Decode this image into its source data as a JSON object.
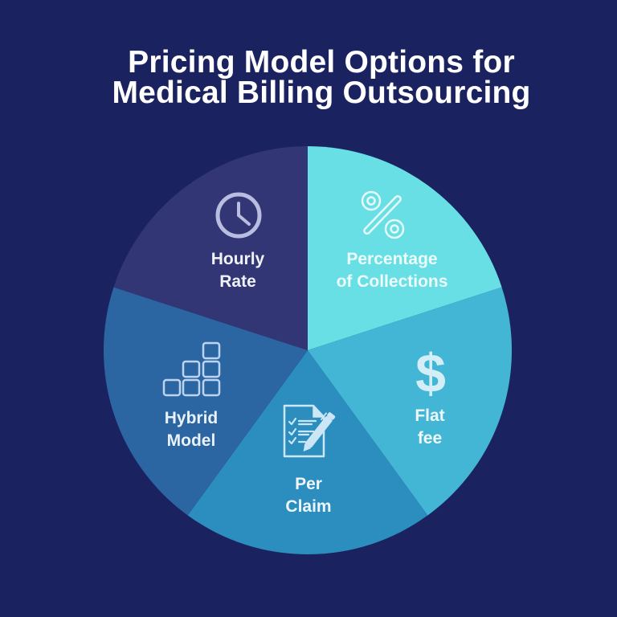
{
  "title": {
    "line1": "Pricing Model Options for",
    "line2": "Medical Billing Outsourcing"
  },
  "colors": {
    "background": "#1b2260",
    "title_text": "#ffffff"
  },
  "slices": [
    {
      "label_lines": [
        "Percentage",
        "of Collections"
      ],
      "icon": "percent-icon",
      "color": "#68dfe5"
    },
    {
      "label_lines": [
        "Flat",
        "fee"
      ],
      "icon": "dollar-icon",
      "color": "#44b6d5"
    },
    {
      "label_lines": [
        "Per",
        "Claim"
      ],
      "icon": "document-pen-icon",
      "color": "#2c8ebf"
    },
    {
      "label_lines": [
        "Hybrid",
        "Model"
      ],
      "icon": "stacked-blocks-icon",
      "color": "#2c66a2"
    },
    {
      "label_lines": [
        "Hourly",
        "Rate"
      ],
      "icon": "clock-icon",
      "color": "#323674"
    }
  ],
  "chart_data": {
    "type": "pie",
    "title": "Pricing Model Options for Medical Billing Outsourcing",
    "categories": [
      "Percentage of Collections",
      "Flat fee",
      "Per Claim",
      "Hybrid Model",
      "Hourly Rate"
    ],
    "values": [
      20,
      20,
      20,
      20,
      20
    ],
    "colors": [
      "#68dfe5",
      "#44b6d5",
      "#2c8ebf",
      "#2c66a2",
      "#323674"
    ],
    "start_angle_deg": 0,
    "direction": "clockwise",
    "legend": "none",
    "labels": "inside slices, with icons",
    "xlabel": "",
    "ylabel": ""
  },
  "icons": {
    "dollar_glyph": "$"
  }
}
